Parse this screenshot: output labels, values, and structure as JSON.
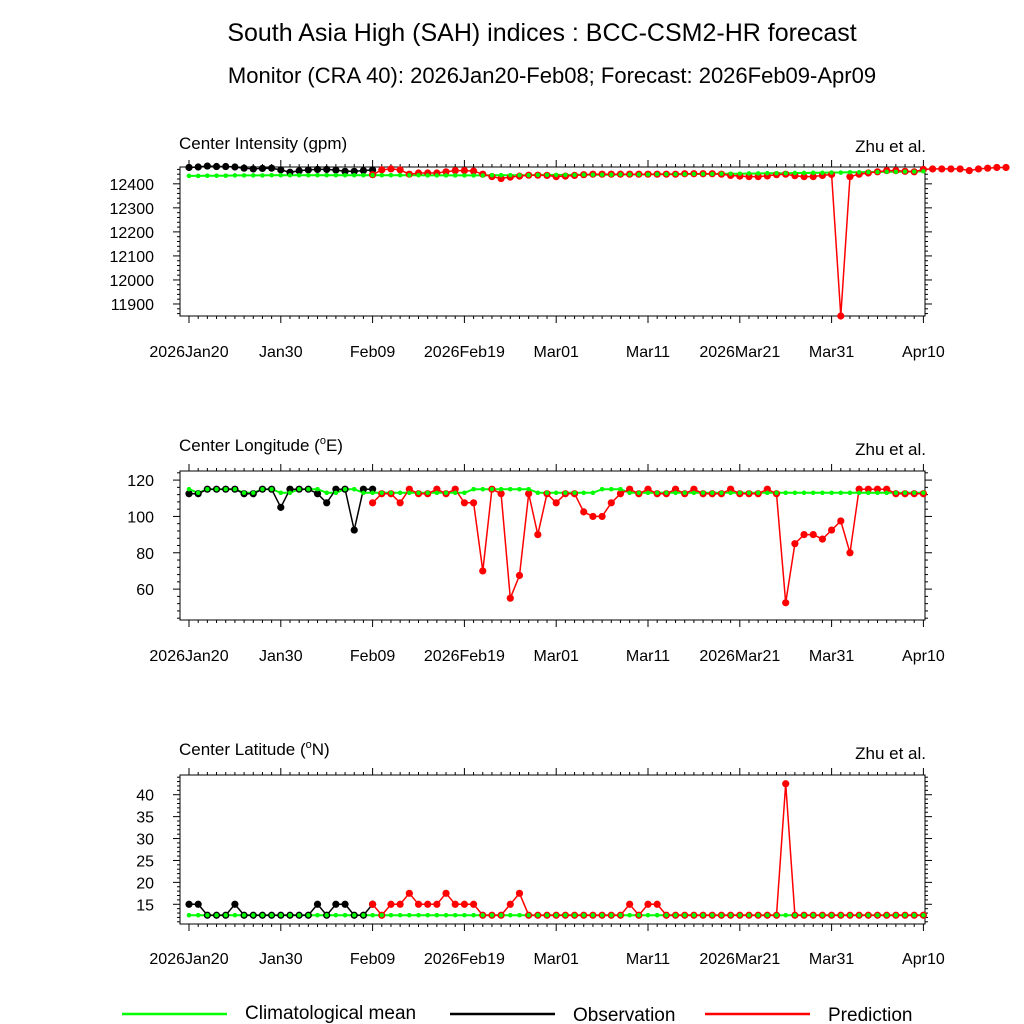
{
  "title": "South Asia High (SAH) indices : BCC-CSM2-HR forecast",
  "subtitle": "Monitor (CRA 40): 2026Jan20-Feb08; Forecast: 2026Feb09-Apr09",
  "credit": "Zhu et al.",
  "colors": {
    "climatology": "#00ff00",
    "observation": "#000000",
    "prediction": "#ff0000"
  },
  "x_tick_labels": [
    "2026Jan20",
    "Jan30",
    "Feb09",
    "2026Feb19",
    "Mar01",
    "Mar11",
    "2026Mar21",
    "Mar31",
    "Apr10"
  ],
  "legend": {
    "climatology": "Climatological mean",
    "observation": "Observation",
    "prediction": "Prediction"
  },
  "chart_data": [
    {
      "type": "line",
      "title": "Center Intensity (gpm)",
      "x_start": "2026Jan20",
      "xlim": [
        0,
        81
      ],
      "ylim": [
        11850,
        12470
      ],
      "y_ticks": [
        11900,
        12000,
        12100,
        12200,
        12300,
        12400
      ],
      "series": [
        {
          "name": "Climatological mean",
          "start": 0,
          "values": [
            12433,
            12433,
            12434,
            12434,
            12434,
            12435,
            12435,
            12435,
            12435,
            12436,
            12436,
            12436,
            12436,
            12436,
            12436,
            12436,
            12436,
            12436,
            12436,
            12436,
            12436,
            12436,
            12436,
            12436,
            12436,
            12436,
            12435,
            12435,
            12435,
            12435,
            12435,
            12435,
            12435,
            12436,
            12436,
            12436,
            12436,
            12436,
            12437,
            12437,
            12437,
            12437,
            12437,
            12438,
            12438,
            12438,
            12438,
            12439,
            12439,
            12439,
            12439,
            12440,
            12440,
            12440,
            12440,
            12441,
            12441,
            12441,
            12442,
            12442,
            12442,
            12443,
            12443,
            12444,
            12444,
            12444,
            12445,
            12445,
            12446,
            12446,
            12447,
            12447,
            12448,
            12448,
            12449,
            12449,
            12450,
            12450,
            12451,
            12451,
            12452
          ]
        },
        {
          "name": "Observation",
          "start": 0,
          "values": [
            12468,
            12470,
            12474,
            12472,
            12472,
            12470,
            12465,
            12462,
            12464,
            12465,
            12458,
            12448,
            12454,
            12458,
            12460,
            12460,
            12457,
            12452,
            12452,
            12455,
            12458
          ]
        },
        {
          "name": "Prediction",
          "start": 20,
          "values": [
            12438,
            12458,
            12462,
            12458,
            12440,
            12445,
            12445,
            12445,
            12450,
            12455,
            12455,
            12453,
            12440,
            12430,
            12422,
            12428,
            12432,
            12436,
            12436,
            12435,
            12430,
            12432,
            12435,
            12438,
            12440,
            12440,
            12440,
            12440,
            12440,
            12440,
            12440,
            12440,
            12440,
            12440,
            12442,
            12442,
            12442,
            12442,
            12440,
            12435,
            12432,
            12430,
            12430,
            12433,
            12438,
            12440,
            12434,
            12430,
            12430,
            12435,
            12439,
            11850,
            12430,
            12440,
            12445,
            12450,
            12455,
            12455,
            12452,
            12450,
            12460,
            12462,
            12462,
            12462,
            12462,
            12455,
            12462,
            12465,
            12468,
            12468
          ]
        }
      ]
    },
    {
      "type": "line",
      "title": "Center Longitude (°E)",
      "title_pre": "Center Longitude (",
      "title_sup": "o",
      "title_post": "E)",
      "x_start": "2026Jan20",
      "xlim": [
        0,
        81
      ],
      "ylim": [
        43,
        125
      ],
      "y_ticks": [
        60,
        80,
        100,
        120
      ],
      "series": [
        {
          "name": "Climatological mean",
          "start": 0,
          "values": [
            115,
            113,
            115,
            115,
            115,
            115,
            113,
            113,
            115,
            115,
            113,
            113,
            115,
            115,
            115,
            113,
            113,
            115,
            115,
            113,
            113,
            113,
            113,
            113,
            113,
            113,
            113,
            113,
            113,
            113,
            113,
            115,
            115,
            115,
            115,
            115,
            115,
            115,
            113,
            113,
            113,
            113,
            113,
            113,
            113,
            115,
            115,
            115,
            113,
            113,
            113,
            113,
            113,
            113,
            113,
            113,
            113,
            113,
            113,
            113,
            113,
            113,
            113,
            113,
            113,
            113,
            113,
            113,
            113,
            113,
            113,
            113,
            113,
            113,
            113,
            113,
            113,
            113,
            113,
            113,
            113
          ]
        },
        {
          "name": "Observation",
          "start": 0,
          "values": [
            112.5,
            112.5,
            115,
            115,
            115,
            115,
            112.5,
            112.5,
            115,
            115,
            105,
            115,
            115,
            115,
            112.5,
            107.5,
            115,
            115,
            92.5,
            115,
            115
          ]
        },
        {
          "name": "Prediction",
          "start": 20,
          "values": [
            107.5,
            112.5,
            112.5,
            107.5,
            115,
            112.5,
            112.5,
            115,
            112.5,
            115,
            107.5,
            107.5,
            70,
            115,
            112.5,
            55,
            67.5,
            112.5,
            90,
            112.5,
            107.5,
            112.5,
            112.5,
            102.5,
            100,
            100,
            107.5,
            112.5,
            115,
            112.5,
            115,
            112.5,
            112.5,
            115,
            112.5,
            115,
            112.5,
            112.5,
            112.5,
            115,
            112.5,
            112.5,
            112.5,
            115,
            112.5,
            52.5,
            85,
            90,
            90,
            87.5,
            92.5,
            97.5,
            80,
            115,
            115,
            115,
            115,
            112.5,
            112.5,
            112.5,
            112.5
          ]
        }
      ]
    },
    {
      "type": "line",
      "title": "Center Latitude (°N)",
      "title_pre": "Center Latitude (",
      "title_sup": "o",
      "title_post": "N)",
      "x_start": "2026Jan20",
      "xlim": [
        0,
        81
      ],
      "ylim": [
        10.5,
        44.5
      ],
      "y_ticks": [
        15,
        20,
        25,
        30,
        35,
        40
      ],
      "series": [
        {
          "name": "Climatological mean",
          "start": 0,
          "values": [
            12.5,
            12.5,
            12.5,
            12.5,
            12.5,
            12.5,
            12.5,
            12.5,
            12.5,
            12.5,
            12.5,
            12.5,
            12.5,
            12.5,
            12.5,
            12.5,
            12.5,
            12.5,
            12.5,
            12.5,
            12.5,
            12.5,
            12.5,
            12.5,
            12.5,
            12.5,
            12.5,
            12.5,
            12.5,
            12.5,
            12.5,
            12.5,
            12.5,
            12.5,
            12.5,
            12.5,
            12.5,
            12.5,
            12.5,
            12.5,
            12.5,
            12.5,
            12.5,
            12.5,
            12.5,
            12.5,
            12.5,
            12.5,
            12.5,
            12.5,
            12.5,
            12.5,
            12.5,
            12.5,
            12.5,
            12.5,
            12.5,
            12.5,
            12.5,
            12.5,
            12.5,
            12.5,
            12.5,
            12.5,
            12.5,
            12.5,
            12.5,
            12.5,
            12.5,
            12.5,
            12.5,
            12.5,
            12.5,
            12.5,
            12.5,
            12.5,
            12.5,
            12.5,
            12.5,
            12.5,
            12.5
          ]
        },
        {
          "name": "Observation",
          "start": 0,
          "values": [
            15,
            15,
            12.5,
            12.5,
            12.5,
            15,
            12.5,
            12.5,
            12.5,
            12.5,
            12.5,
            12.5,
            12.5,
            12.5,
            15,
            12.5,
            15,
            15,
            12.5,
            12.5,
            15
          ]
        },
        {
          "name": "Prediction",
          "start": 20,
          "values": [
            15,
            12.5,
            15,
            15,
            17.5,
            15,
            15,
            15,
            17.5,
            15,
            15,
            15,
            12.5,
            12.5,
            12.5,
            15,
            17.5,
            12.5,
            12.5,
            12.5,
            12.5,
            12.5,
            12.5,
            12.5,
            12.5,
            12.5,
            12.5,
            12.5,
            15,
            12.5,
            15,
            15,
            12.5,
            12.5,
            12.5,
            12.5,
            12.5,
            12.5,
            12.5,
            12.5,
            12.5,
            12.5,
            12.5,
            12.5,
            12.5,
            42.5,
            12.5,
            12.5,
            12.5,
            12.5,
            12.5,
            12.5,
            12.5,
            12.5,
            12.5,
            12.5,
            12.5,
            12.5,
            12.5,
            12.5,
            12.5
          ]
        }
      ]
    }
  ]
}
